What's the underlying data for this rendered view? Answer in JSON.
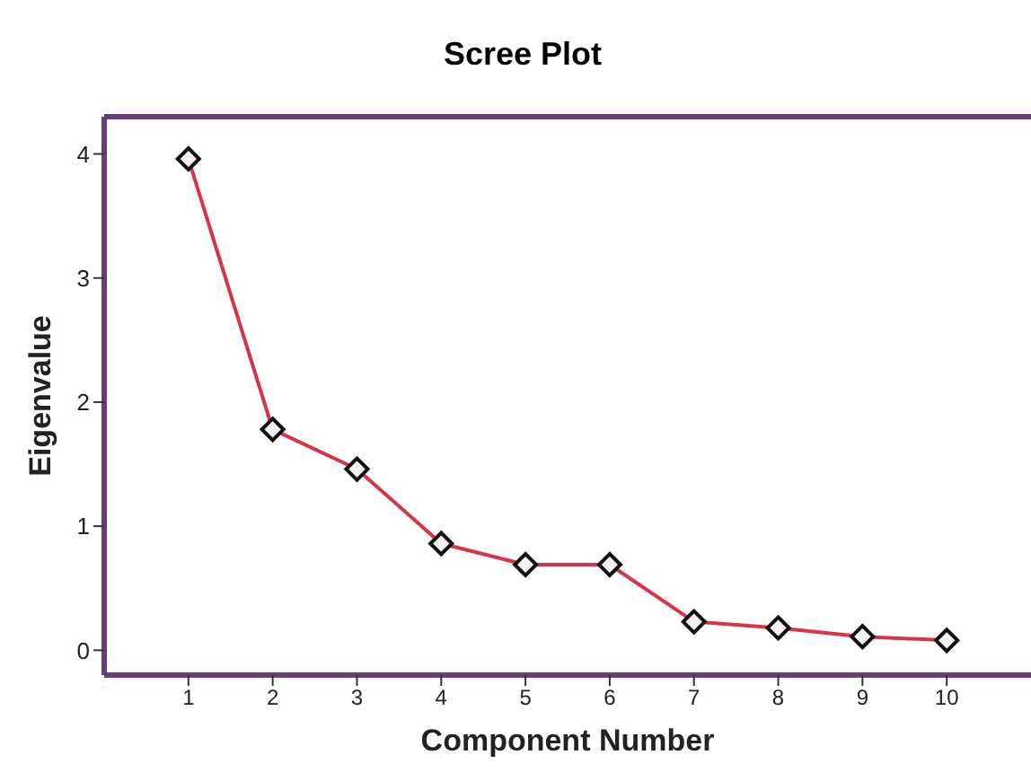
{
  "chart_data": {
    "type": "line",
    "title": "Scree Plot",
    "xlabel": "Component Number",
    "ylabel": "Eigenvalue",
    "x": [
      1,
      2,
      3,
      4,
      5,
      6,
      7,
      8,
      9,
      10
    ],
    "series": [
      {
        "color": "#d9334a",
        "values": [
          3.96,
          1.78,
          1.46,
          0.86,
          0.69,
          0.69,
          0.23,
          0.18,
          0.11,
          0.08
        ]
      }
    ],
    "xlim": [
      0,
      11
    ],
    "xticks": [
      1,
      2,
      3,
      4,
      5,
      6,
      7,
      8,
      9,
      10
    ],
    "ylim": [
      -0.2,
      4.3
    ],
    "yticks": [
      0,
      1,
      2,
      3,
      4
    ],
    "grid": false,
    "legend": false,
    "marker": "diamond",
    "line_style": "solid"
  }
}
